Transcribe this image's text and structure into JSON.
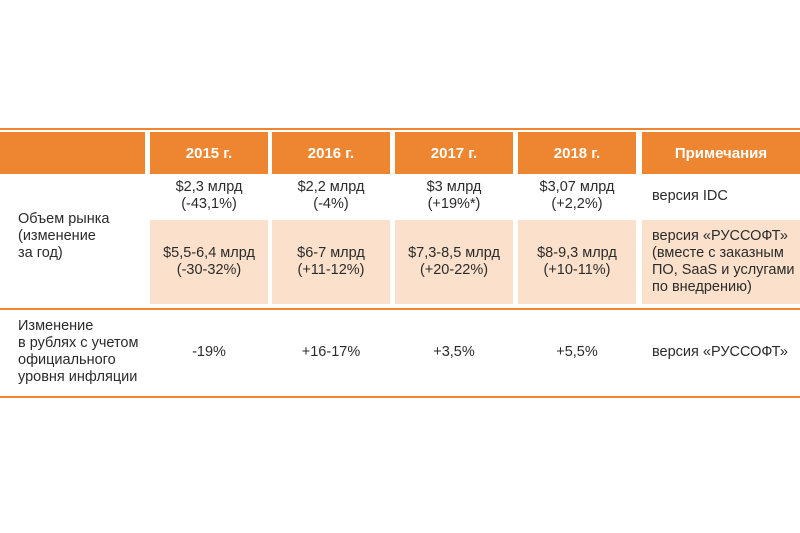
{
  "header": {
    "years": [
      "2015 г.",
      "2016 г.",
      "2017 г.",
      "2018 г."
    ],
    "notes_label": "Примечания"
  },
  "market_volume": {
    "label_lines": [
      "Объем рынка",
      "(изменение",
      "за год)"
    ],
    "idc": {
      "values": [
        [
          "$2,3 млрд",
          "(-43,1%)"
        ],
        [
          "$2,2 млрд",
          "(-4%)"
        ],
        [
          "$3 млрд",
          "(+19%*)"
        ],
        [
          "$3,07 млрд",
          "(+2,2%)"
        ]
      ],
      "note_lines": [
        "версия IDC"
      ]
    },
    "russoft": {
      "values": [
        [
          "$5,5-6,4 млрд",
          "(-30-32%)"
        ],
        [
          "$6-7 млрд",
          "(+11-12%)"
        ],
        [
          "$7,3-8,5 млрд",
          "(+20-22%)"
        ],
        [
          "$8-9,3 млрд",
          "(+10-11%)"
        ]
      ],
      "note_lines": [
        "версия «РУССОФТ»",
        "(вместе с заказным",
        "ПО, SaaS и услугами",
        "по внедрению)"
      ]
    }
  },
  "ruble_change": {
    "label_lines": [
      "Изменение",
      "в рублях с учетом",
      "официального",
      "уровня инфляции"
    ],
    "values": [
      "-19%",
      "+16-17%",
      "+3,5%",
      "+5,5%"
    ],
    "note_lines": [
      "версия «РУССОФТ»"
    ]
  },
  "colors": {
    "accent": "#ee8530",
    "highlight": "#fbe1cb"
  }
}
